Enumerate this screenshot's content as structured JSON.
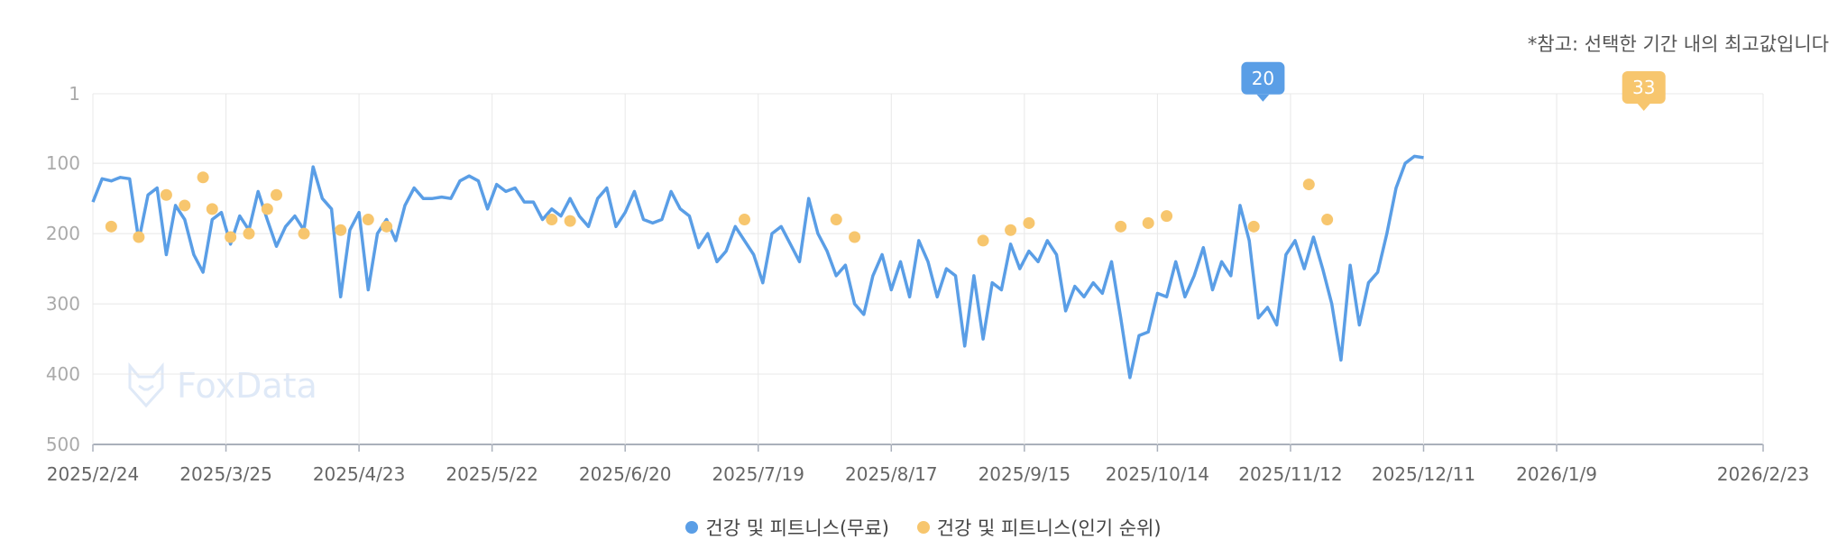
{
  "note": "*참고: 선택한 기간 내의 최고값입니다",
  "watermark": "FoxData",
  "colors": {
    "free": "#5a9ee6",
    "popular": "#f7c66e",
    "grid": "#e8e8e8",
    "axis": "#aab0bb"
  },
  "chart_data": {
    "type": "line",
    "y_inverted": true,
    "ylim": [
      1,
      500
    ],
    "y_ticks": [
      1,
      100,
      200,
      300,
      400,
      500
    ],
    "x_tick_labels": [
      "2025/2/24",
      "2025/3/25",
      "2025/4/23",
      "2025/5/22",
      "2025/6/20",
      "2025/7/19",
      "2025/8/17",
      "2025/9/15",
      "2025/10/14",
      "2025/11/12",
      "2025/12/11",
      "2026/1/9",
      "2026/2/23"
    ],
    "x_range": [
      "2025-02-24",
      "2026-02-23"
    ],
    "grid": true,
    "legend_position": "bottom",
    "peak_labels": [
      {
        "series": 0,
        "value": "20",
        "date": "2025-11-06"
      },
      {
        "series": 1,
        "value": "33",
        "date": "2026-01-28"
      }
    ],
    "series": [
      {
        "name": "건강 및 피트니스(무료)",
        "color": "#5a9ee6",
        "points": [
          [
            "2025-02-24",
            155
          ],
          [
            "2025-02-26",
            122
          ],
          [
            "2025-02-28",
            125
          ],
          [
            "2025-03-02",
            120
          ],
          [
            "2025-03-04",
            122
          ],
          [
            "2025-03-06",
            210
          ],
          [
            "2025-03-08",
            145
          ],
          [
            "2025-03-10",
            135
          ],
          [
            "2025-03-12",
            230
          ],
          [
            "2025-03-14",
            160
          ],
          [
            "2025-03-16",
            180
          ],
          [
            "2025-03-18",
            230
          ],
          [
            "2025-03-20",
            255
          ],
          [
            "2025-03-22",
            180
          ],
          [
            "2025-03-24",
            170
          ],
          [
            "2025-03-26",
            215
          ],
          [
            "2025-03-28",
            175
          ],
          [
            "2025-03-30",
            195
          ],
          [
            "2025-04-01",
            140
          ],
          [
            "2025-04-03",
            180
          ],
          [
            "2025-04-05",
            218
          ],
          [
            "2025-04-07",
            190
          ],
          [
            "2025-04-09",
            175
          ],
          [
            "2025-04-11",
            195
          ],
          [
            "2025-04-13",
            105
          ],
          [
            "2025-04-15",
            150
          ],
          [
            "2025-04-17",
            165
          ],
          [
            "2025-04-19",
            290
          ],
          [
            "2025-04-21",
            195
          ],
          [
            "2025-04-23",
            170
          ],
          [
            "2025-04-25",
            280
          ],
          [
            "2025-04-27",
            200
          ],
          [
            "2025-04-29",
            180
          ],
          [
            "2025-05-01",
            210
          ],
          [
            "2025-05-03",
            160
          ],
          [
            "2025-05-05",
            135
          ],
          [
            "2025-05-07",
            150
          ],
          [
            "2025-05-09",
            150
          ],
          [
            "2025-05-11",
            148
          ],
          [
            "2025-05-13",
            150
          ],
          [
            "2025-05-15",
            125
          ],
          [
            "2025-05-17",
            118
          ],
          [
            "2025-05-19",
            125
          ],
          [
            "2025-05-21",
            165
          ],
          [
            "2025-05-23",
            130
          ],
          [
            "2025-05-25",
            140
          ],
          [
            "2025-05-27",
            135
          ],
          [
            "2025-05-29",
            155
          ],
          [
            "2025-05-31",
            155
          ],
          [
            "2025-06-02",
            180
          ],
          [
            "2025-06-04",
            165
          ],
          [
            "2025-06-06",
            175
          ],
          [
            "2025-06-08",
            150
          ],
          [
            "2025-06-10",
            175
          ],
          [
            "2025-06-12",
            190
          ],
          [
            "2025-06-14",
            150
          ],
          [
            "2025-06-16",
            135
          ],
          [
            "2025-06-18",
            190
          ],
          [
            "2025-06-20",
            170
          ],
          [
            "2025-06-22",
            140
          ],
          [
            "2025-06-24",
            180
          ],
          [
            "2025-06-26",
            185
          ],
          [
            "2025-06-28",
            180
          ],
          [
            "2025-06-30",
            140
          ],
          [
            "2025-07-02",
            165
          ],
          [
            "2025-07-04",
            175
          ],
          [
            "2025-07-06",
            220
          ],
          [
            "2025-07-08",
            200
          ],
          [
            "2025-07-10",
            240
          ],
          [
            "2025-07-12",
            225
          ],
          [
            "2025-07-14",
            190
          ],
          [
            "2025-07-16",
            210
          ],
          [
            "2025-07-18",
            230
          ],
          [
            "2025-07-20",
            270
          ],
          [
            "2025-07-22",
            200
          ],
          [
            "2025-07-24",
            190
          ],
          [
            "2025-07-26",
            215
          ],
          [
            "2025-07-28",
            240
          ],
          [
            "2025-07-30",
            150
          ],
          [
            "2025-08-01",
            200
          ],
          [
            "2025-08-03",
            225
          ],
          [
            "2025-08-05",
            260
          ],
          [
            "2025-08-07",
            245
          ],
          [
            "2025-08-09",
            300
          ],
          [
            "2025-08-11",
            315
          ],
          [
            "2025-08-13",
            260
          ],
          [
            "2025-08-15",
            230
          ],
          [
            "2025-08-17",
            280
          ],
          [
            "2025-08-19",
            240
          ],
          [
            "2025-08-21",
            290
          ],
          [
            "2025-08-23",
            210
          ],
          [
            "2025-08-25",
            240
          ],
          [
            "2025-08-27",
            290
          ],
          [
            "2025-08-29",
            250
          ],
          [
            "2025-08-31",
            260
          ],
          [
            "2025-09-02",
            360
          ],
          [
            "2025-09-04",
            260
          ],
          [
            "2025-09-06",
            350
          ],
          [
            "2025-09-08",
            270
          ],
          [
            "2025-09-10",
            280
          ],
          [
            "2025-09-12",
            215
          ],
          [
            "2025-09-14",
            250
          ],
          [
            "2025-09-16",
            225
          ],
          [
            "2025-09-18",
            240
          ],
          [
            "2025-09-20",
            210
          ],
          [
            "2025-09-22",
            230
          ],
          [
            "2025-09-24",
            310
          ],
          [
            "2025-09-26",
            275
          ],
          [
            "2025-09-28",
            290
          ],
          [
            "2025-09-30",
            270
          ],
          [
            "2025-10-02",
            285
          ],
          [
            "2025-10-04",
            240
          ],
          [
            "2025-10-06",
            320
          ],
          [
            "2025-10-08",
            405
          ],
          [
            "2025-10-10",
            345
          ],
          [
            "2025-10-12",
            340
          ],
          [
            "2025-10-14",
            285
          ],
          [
            "2025-10-16",
            290
          ],
          [
            "2025-10-18",
            240
          ],
          [
            "2025-10-20",
            290
          ],
          [
            "2025-10-22",
            260
          ],
          [
            "2025-10-24",
            220
          ],
          [
            "2025-10-26",
            280
          ],
          [
            "2025-10-28",
            240
          ],
          [
            "2025-10-30",
            260
          ],
          [
            "2025-11-01",
            160
          ],
          [
            "2025-11-03",
            210
          ],
          [
            "2025-11-05",
            320
          ],
          [
            "2025-11-07",
            305
          ],
          [
            "2025-11-09",
            330
          ],
          [
            "2025-11-11",
            230
          ],
          [
            "2025-11-13",
            210
          ],
          [
            "2025-11-15",
            250
          ],
          [
            "2025-11-17",
            205
          ],
          [
            "2025-11-19",
            250
          ],
          [
            "2025-11-21",
            300
          ],
          [
            "2025-11-23",
            380
          ],
          [
            "2025-11-25",
            245
          ],
          [
            "2025-11-27",
            330
          ],
          [
            "2025-11-29",
            270
          ],
          [
            "2025-12-01",
            255
          ],
          [
            "2025-12-03",
            200
          ],
          [
            "2025-12-05",
            135
          ],
          [
            "2025-12-07",
            100
          ],
          [
            "2025-12-09",
            90
          ],
          [
            "2025-12-11",
            92
          ]
        ]
      },
      {
        "name": "건강 및 피트니스(인기 순위)",
        "color": "#f7c66e",
        "points": [
          [
            "2025-02-28",
            190
          ],
          [
            "2025-03-06",
            205
          ],
          [
            "2025-03-12",
            145
          ],
          [
            "2025-03-16",
            160
          ],
          [
            "2025-03-20",
            120
          ],
          [
            "2025-03-22",
            165
          ],
          [
            "2025-03-26",
            205
          ],
          [
            "2025-03-30",
            200
          ],
          [
            "2025-04-03",
            165
          ],
          [
            "2025-04-05",
            145
          ],
          [
            "2025-04-11",
            200
          ],
          [
            "2025-04-19",
            195
          ],
          [
            "2025-04-25",
            180
          ],
          [
            "2025-04-29",
            190
          ],
          [
            "2025-06-04",
            180
          ],
          [
            "2025-06-08",
            182
          ],
          [
            "2025-07-16",
            180
          ],
          [
            "2025-08-05",
            180
          ],
          [
            "2025-08-09",
            205
          ],
          [
            "2025-09-06",
            210
          ],
          [
            "2025-09-12",
            195
          ],
          [
            "2025-09-16",
            185
          ],
          [
            "2025-10-06",
            190
          ],
          [
            "2025-10-12",
            185
          ],
          [
            "2025-10-16",
            175
          ],
          [
            "2025-11-04",
            190
          ],
          [
            "2025-11-16",
            130
          ],
          [
            "2025-11-20",
            180
          ]
        ]
      }
    ]
  },
  "series_labels": [
    "건강 및 피트니스(무료)",
    "건강 및 피트니스(인기 순위)"
  ]
}
